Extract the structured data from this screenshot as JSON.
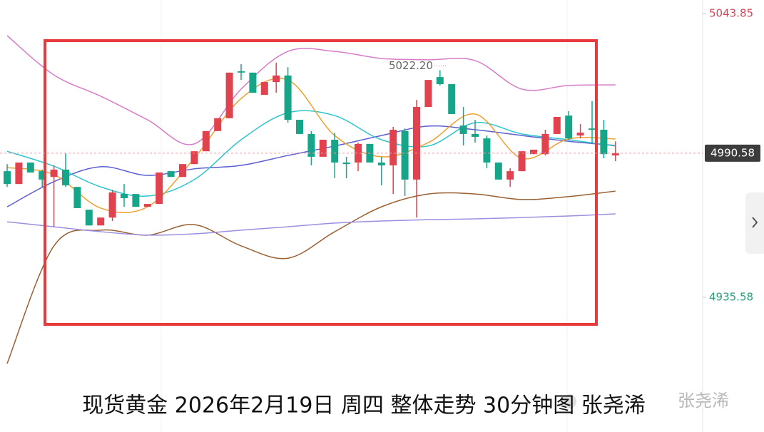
{
  "chart_data": {
    "type": "candlestick",
    "caption": "现货黄金 2026年2月19日 周四 整体走势 30分钟图 张尧浠",
    "watermark": "张尧浠",
    "ylim": [
      4884.2,
      5049.0
    ],
    "yticks": [
      5043.85,
      4935.58
    ],
    "ytick_colors": [
      "#d0455a",
      "#2a9d7a"
    ],
    "up_color": "#e0424e",
    "down_color": "#17a58a",
    "high_annotation": {
      "value": 5022.2,
      "label": "5022.20"
    },
    "candles": [
      [
        4983.7,
        4986.4,
        4977.7,
        4978.8
      ],
      [
        4978.8,
        4987.0,
        4978.8,
        4987.0
      ],
      [
        4987.0,
        4987.0,
        4983.2,
        4983.2
      ],
      [
        4983.7,
        4984.3,
        4977.7,
        4980.5
      ],
      [
        4981.5,
        4985.9,
        4962.5,
        4984.3
      ],
      [
        4984.3,
        4990.5,
        4977.7,
        4978.3
      ],
      [
        4977.7,
        4977.7,
        4969.6,
        4969.6
      ],
      [
        4969.0,
        4969.0,
        4963.0,
        4963.0
      ],
      [
        4963.0,
        4966.0,
        4963.0,
        4966.0
      ],
      [
        4966.0,
        4976.6,
        4964.7,
        4975.6
      ],
      [
        4975.0,
        4978.8,
        4970.1,
        4973.4
      ],
      [
        4975.0,
        4975.0,
        4970.1,
        4970.1
      ],
      [
        4970.1,
        4971.2,
        4970.1,
        4971.2
      ],
      [
        4971.2,
        4983.2,
        4971.2,
        4983.2
      ],
      [
        4983.7,
        4983.7,
        4981.5,
        4981.5
      ],
      [
        4981.5,
        4986.4,
        4981.5,
        4986.4
      ],
      [
        4986.4,
        4991.3,
        4986.4,
        4991.3
      ],
      [
        4991.3,
        4999.0,
        4991.3,
        4999.0
      ],
      [
        4999.0,
        5003.9,
        4999.0,
        5003.9
      ],
      [
        5003.9,
        5021.3,
        5003.9,
        5021.3
      ],
      [
        5021.8,
        5024.5,
        5018.5,
        5021.3
      ],
      [
        5021.3,
        5021.3,
        5013.6,
        5013.6
      ],
      [
        5012.8,
        5017.7,
        5012.8,
        5017.7
      ],
      [
        5017.7,
        5025.1,
        5013.6,
        5020.2
      ],
      [
        5020.2,
        5023.4,
        5002.2,
        5003.3
      ],
      [
        5003.3,
        5003.3,
        4997.9,
        4997.9
      ],
      [
        4997.9,
        4999.0,
        4985.9,
        4989.2
      ],
      [
        4989.2,
        4995.7,
        4989.2,
        4995.7
      ],
      [
        4995.7,
        4998.4,
        4981.0,
        4987.0
      ],
      [
        4987.0,
        4989.2,
        4981.0,
        4986.4
      ],
      [
        4987.0,
        4994.6,
        4983.7,
        4994.1
      ],
      [
        4994.1,
        4994.1,
        4987.0,
        4987.0
      ],
      [
        4987.0,
        4989.2,
        4978.3,
        4985.9
      ],
      [
        4985.9,
        5000.6,
        4975.0,
        4999.5
      ],
      [
        4999.0,
        5000.0,
        4974.2,
        4980.5
      ],
      [
        4980.5,
        5010.9,
        4966.0,
        5008.2
      ],
      [
        5008.2,
        5018.5,
        5008.2,
        5018.5
      ],
      [
        5019.6,
        5022.2,
        5016.4,
        5016.9
      ],
      [
        5016.9,
        5016.9,
        5005.5,
        5005.5
      ],
      [
        5001.1,
        5008.2,
        4993.5,
        4997.9
      ],
      [
        4997.9,
        5003.3,
        4994.6,
        4996.8
      ],
      [
        4996.2,
        4997.3,
        4984.8,
        4987.0
      ],
      [
        4987.0,
        4987.0,
        4980.5,
        4980.5
      ],
      [
        4980.5,
        4984.8,
        4977.7,
        4983.7
      ],
      [
        4983.7,
        4991.3,
        4983.7,
        4991.3
      ],
      [
        4990.2,
        4991.9,
        4990.2,
        4991.9
      ],
      [
        4990.2,
        4999.5,
        4989.7,
        4997.9
      ],
      [
        4997.9,
        5004.4,
        4997.9,
        5004.4
      ],
      [
        5004.9,
        5006.6,
        4995.7,
        4996.2
      ],
      [
        4997.3,
        5001.7,
        4996.2,
        4998.4
      ],
      [
        5000.0,
        5010.4,
        4994.6,
        4999.5
      ],
      [
        4999.5,
        5003.3,
        4988.6,
        4990.2
      ],
      [
        4989.7,
        4995.1,
        4987.5,
        4990.58
      ]
    ],
    "x": [
      0,
      4,
      8,
      12,
      16,
      20,
      24,
      28,
      32,
      36,
      40,
      44,
      48,
      52
    ],
    "series": [
      {
        "color": "#d87bc8",
        "values": [
          5035.4,
          5020.4,
          5012.3,
          5003.3,
          4994.1,
          5015.0,
          5029.4,
          5029.4,
          5026.7,
          5026.2,
          5025.9,
          5015.0,
          5016.4,
          5016.6
        ]
      },
      {
        "color": "#9a6031",
        "values": [
          4910.3,
          4955.2,
          4961.2,
          4959.3,
          4963.3,
          4955.2,
          4950.5,
          4960.6,
          4970.1,
          4975.0,
          4975.0,
          4972.9,
          4974.0,
          4976.1
        ]
      },
      {
        "color": "#9a8fe0",
        "values": [
          4964.4,
          4962.5,
          4960.6,
          4959.3,
          4959.8,
          4961.2,
          4962.5,
          4963.9,
          4964.7,
          4965.2,
          4965.5,
          4966.0,
          4966.6,
          4967.4
        ]
      },
      {
        "color": "#5b5fd0",
        "values": [
          4970.1,
          4979.7,
          4985.4,
          4982.1,
          4984.6,
          4985.9,
          4989.7,
          4993.3,
          4997.3,
          5000.9,
          4999.5,
          4997.3,
          4995.1,
          4993.5
        ]
      },
      {
        "color": "#2ec4cc",
        "values": [
          4991.3,
          4985.6,
          4977.7,
          4974.2,
          4980.5,
          4995.7,
          5006.0,
          5004.9,
          4995.7,
          4993.3,
          5002.2,
          4997.9,
          4995.7,
          4993.3
        ]
      },
      {
        "color": "#f0a030",
        "values": [
          4985.1,
          4982.4,
          4969.6,
          4970.1,
          4988.6,
          5011.4,
          5018.5,
          4997.3,
          4989.2,
          4994.6,
          5005.5,
          4988.6,
          4996.0,
          4996.0
        ]
      }
    ]
  }
}
